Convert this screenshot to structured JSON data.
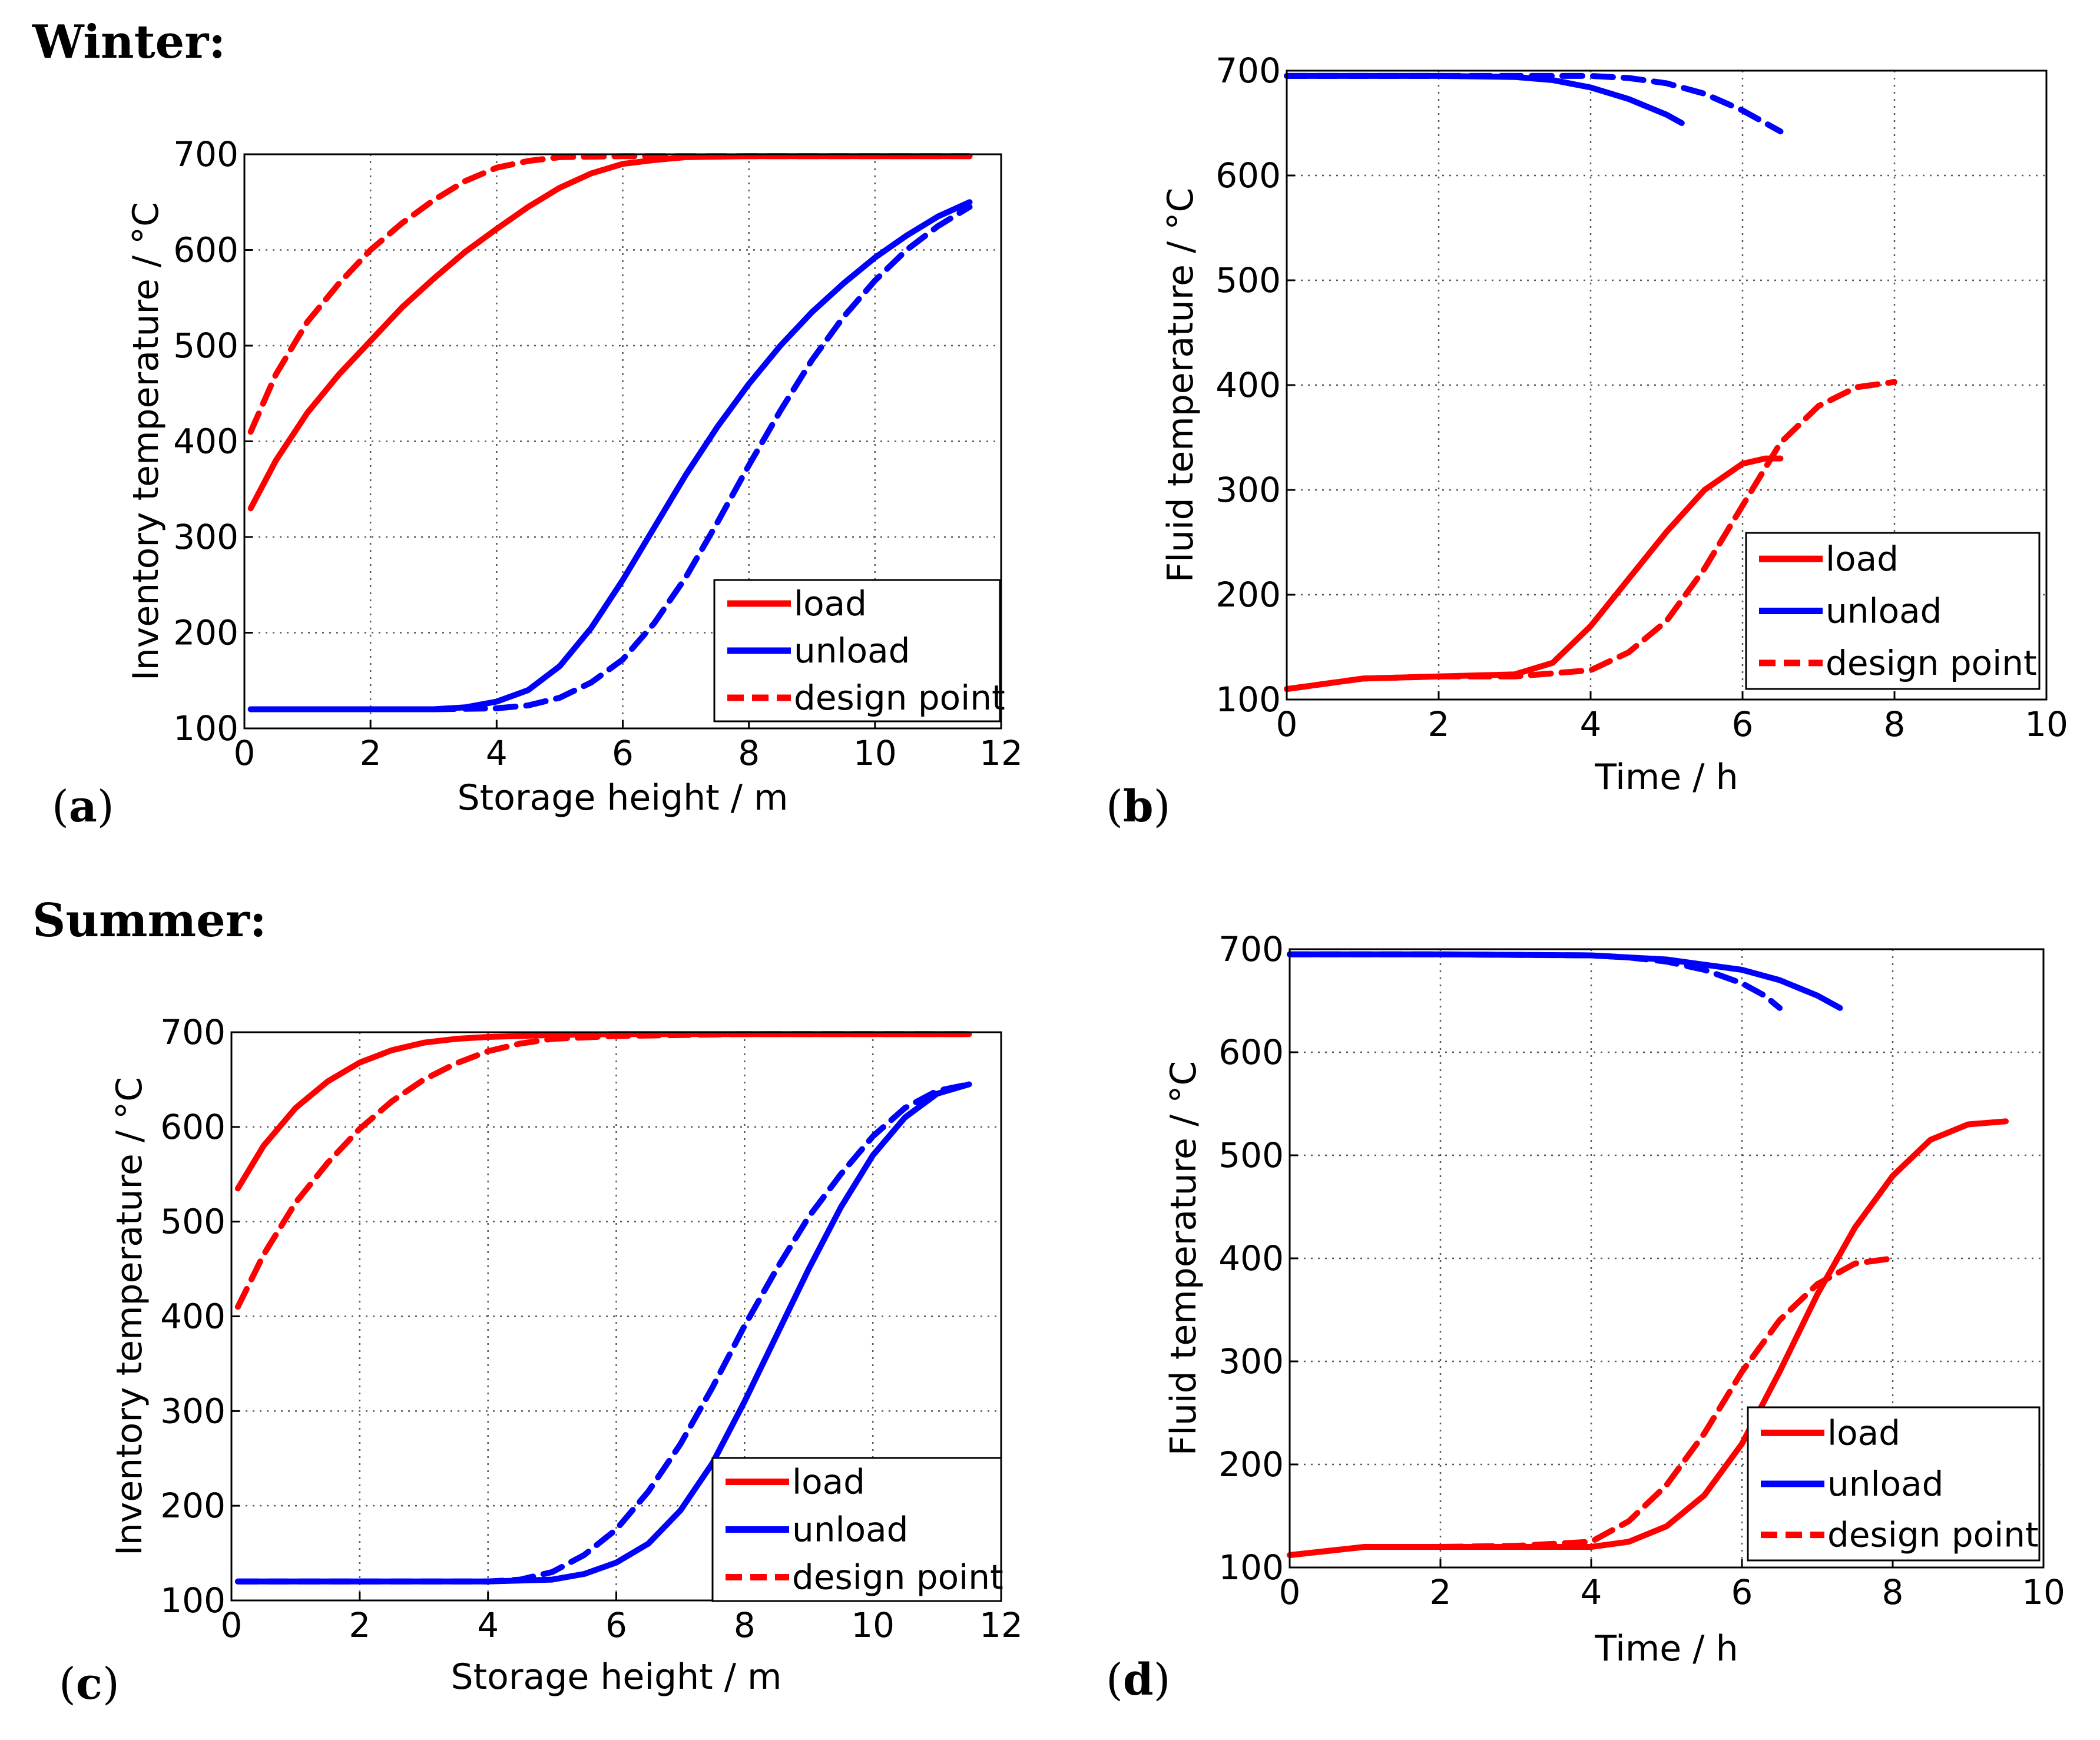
{
  "season_labels": {
    "winter": "Winter:",
    "summer": "Summer:"
  },
  "colors": {
    "load": "#ff0000",
    "unload": "#0000ff"
  },
  "chart_data": [
    {
      "id": "a",
      "panel_letter": "a",
      "type": "line",
      "xlabel": "Storage height / m",
      "ylabel": "Inventory temperature / °C",
      "xlim": [
        0,
        12
      ],
      "ylim": [
        100,
        700
      ],
      "xticks": [
        0,
        2,
        4,
        6,
        8,
        10,
        12
      ],
      "yticks": [
        100,
        200,
        300,
        400,
        500,
        600,
        700
      ],
      "grid": true,
      "legend_position": "bottom-right",
      "legend": [
        {
          "label": "load",
          "color": "#ff0000",
          "dash": false
        },
        {
          "label": "unload",
          "color": "#0000ff",
          "dash": false
        },
        {
          "label": "design point",
          "color": "#ff0000",
          "dash": true
        }
      ],
      "series": [
        {
          "name": "load",
          "color": "#ff0000",
          "dash": false,
          "x": [
            0.1,
            0.5,
            1,
            1.5,
            2,
            2.5,
            3,
            3.5,
            4,
            4.5,
            5,
            5.5,
            6,
            6.5,
            7,
            8,
            10,
            11.5
          ],
          "y": [
            330,
            380,
            430,
            470,
            505,
            540,
            570,
            598,
            622,
            645,
            665,
            680,
            690,
            694,
            697,
            698,
            698,
            698
          ]
        },
        {
          "name": "design point",
          "color": "#ff0000",
          "dash": true,
          "x": [
            0.1,
            0.5,
            1,
            1.5,
            2,
            2.5,
            3,
            3.5,
            4,
            4.5,
            5,
            6,
            7,
            9,
            11.5
          ],
          "y": [
            410,
            470,
            525,
            565,
            600,
            628,
            652,
            672,
            686,
            693,
            697,
            698,
            698,
            698,
            698
          ]
        },
        {
          "name": "unload",
          "color": "#0000ff",
          "dash": false,
          "x": [
            0.1,
            1,
            2,
            3,
            3.5,
            4,
            4.5,
            5,
            5.5,
            6,
            6.5,
            7,
            7.5,
            8,
            8.5,
            9,
            9.5,
            10,
            10.5,
            11,
            11.5
          ],
          "y": [
            120,
            120,
            120,
            120,
            122,
            128,
            140,
            165,
            205,
            255,
            310,
            365,
            415,
            460,
            500,
            535,
            565,
            592,
            615,
            635,
            650
          ]
        },
        {
          "name": "unload design point",
          "color": "#0000ff",
          "dash": true,
          "x": [
            0.1,
            2,
            3,
            4,
            4.5,
            5,
            5.5,
            6,
            6.5,
            7,
            7.5,
            8,
            8.5,
            9,
            9.5,
            10,
            10.5,
            11,
            11.5
          ],
          "y": [
            120,
            120,
            120,
            121,
            124,
            132,
            148,
            172,
            210,
            258,
            315,
            375,
            432,
            485,
            530,
            568,
            600,
            625,
            645
          ]
        }
      ]
    },
    {
      "id": "b",
      "panel_letter": "b",
      "type": "line",
      "xlabel": "Time / h",
      "ylabel": "Fluid temperature / °C",
      "xlim": [
        0,
        10
      ],
      "ylim": [
        100,
        700
      ],
      "xticks": [
        0,
        2,
        4,
        6,
        8,
        10
      ],
      "yticks": [
        100,
        200,
        300,
        400,
        500,
        600,
        700
      ],
      "grid": true,
      "legend_position": "bottom-right",
      "legend": [
        {
          "label": "load",
          "color": "#ff0000",
          "dash": false
        },
        {
          "label": "unload",
          "color": "#0000ff",
          "dash": false
        },
        {
          "label": "design point",
          "color": "#ff0000",
          "dash": true
        }
      ],
      "series": [
        {
          "name": "unload",
          "color": "#0000ff",
          "dash": false,
          "x": [
            0,
            1,
            2,
            3,
            3.5,
            4,
            4.5,
            5,
            5.2
          ],
          "y": [
            695,
            695,
            695,
            694,
            691,
            684,
            673,
            658,
            650
          ]
        },
        {
          "name": "unload design point",
          "color": "#0000ff",
          "dash": true,
          "x": [
            0,
            1,
            2,
            3,
            4,
            4.5,
            5,
            5.5,
            6,
            6.5
          ],
          "y": [
            695,
            695,
            695,
            695,
            695,
            693,
            688,
            678,
            662,
            642
          ]
        },
        {
          "name": "load",
          "color": "#ff0000",
          "dash": false,
          "x": [
            0,
            1,
            2,
            3,
            3.5,
            4,
            4.5,
            5,
            5.5,
            6,
            6.3,
            6.5
          ],
          "y": [
            110,
            120,
            122,
            124,
            135,
            170,
            215,
            260,
            300,
            325,
            330,
            330
          ]
        },
        {
          "name": "design point",
          "color": "#ff0000",
          "dash": true,
          "x": [
            0,
            1,
            2,
            3,
            4,
            4.5,
            5,
            5.5,
            6,
            6.5,
            7,
            7.5,
            8
          ],
          "y": [
            110,
            120,
            122,
            122,
            128,
            145,
            175,
            225,
            285,
            345,
            380,
            398,
            403
          ]
        }
      ]
    },
    {
      "id": "c",
      "panel_letter": "c",
      "type": "line",
      "xlabel": "Storage height / m",
      "ylabel": "Inventory temperature / °C",
      "xlim": [
        0,
        12
      ],
      "ylim": [
        100,
        700
      ],
      "xticks": [
        0,
        2,
        4,
        6,
        8,
        10,
        12
      ],
      "yticks": [
        100,
        200,
        300,
        400,
        500,
        600,
        700
      ],
      "grid": true,
      "legend_position": "bottom-right",
      "legend": [
        {
          "label": "load",
          "color": "#ff0000",
          "dash": false
        },
        {
          "label": "unload",
          "color": "#0000ff",
          "dash": false
        },
        {
          "label": "design point",
          "color": "#ff0000",
          "dash": true
        }
      ],
      "series": [
        {
          "name": "load",
          "color": "#ff0000",
          "dash": false,
          "x": [
            0.1,
            0.5,
            1,
            1.5,
            2,
            2.5,
            3,
            3.5,
            4,
            5,
            6,
            8,
            10,
            11.5
          ],
          "y": [
            535,
            580,
            620,
            648,
            668,
            681,
            689,
            693,
            695,
            697,
            698,
            698,
            698,
            698
          ]
        },
        {
          "name": "design point",
          "color": "#ff0000",
          "dash": true,
          "x": [
            0.1,
            0.5,
            1,
            1.5,
            2,
            2.5,
            3,
            3.5,
            4,
            4.5,
            5,
            6,
            8,
            11.5
          ],
          "y": [
            410,
            465,
            520,
            562,
            598,
            627,
            650,
            667,
            680,
            688,
            693,
            696,
            698,
            698
          ]
        },
        {
          "name": "unload",
          "color": "#0000ff",
          "dash": false,
          "x": [
            0.1,
            2,
            4,
            5,
            5.5,
            6,
            6.5,
            7,
            7.5,
            8,
            8.5,
            9,
            9.5,
            10,
            10.5,
            11,
            11.5
          ],
          "y": [
            120,
            120,
            120,
            122,
            128,
            140,
            160,
            195,
            245,
            310,
            380,
            450,
            515,
            570,
            610,
            635,
            645
          ]
        },
        {
          "name": "unload design point",
          "color": "#0000ff",
          "dash": true,
          "x": [
            0.1,
            2,
            4,
            4.5,
            5,
            5.5,
            6,
            6.5,
            7,
            7.5,
            8,
            8.5,
            9,
            9.5,
            10,
            10.5,
            11,
            11.5
          ],
          "y": [
            120,
            120,
            120,
            122,
            130,
            148,
            175,
            215,
            265,
            325,
            390,
            450,
            505,
            550,
            590,
            620,
            638,
            645
          ]
        }
      ]
    },
    {
      "id": "d",
      "panel_letter": "d",
      "type": "line",
      "xlabel": "Time / h",
      "ylabel": "Fluid temperature / °C",
      "xlim": [
        0,
        10
      ],
      "ylim": [
        100,
        700
      ],
      "xticks": [
        0,
        2,
        4,
        6,
        8,
        10
      ],
      "yticks": [
        100,
        200,
        300,
        400,
        500,
        600,
        700
      ],
      "grid": true,
      "legend_position": "bottom-right",
      "legend": [
        {
          "label": "load",
          "color": "#ff0000",
          "dash": false
        },
        {
          "label": "unload",
          "color": "#0000ff",
          "dash": false
        },
        {
          "label": "design point",
          "color": "#ff0000",
          "dash": true
        }
      ],
      "series": [
        {
          "name": "unload",
          "color": "#0000ff",
          "dash": false,
          "x": [
            0,
            2,
            4,
            5,
            5.5,
            6,
            6.5,
            7,
            7.3
          ],
          "y": [
            695,
            695,
            694,
            690,
            685,
            680,
            670,
            655,
            643
          ]
        },
        {
          "name": "unload design point",
          "color": "#0000ff",
          "dash": true,
          "x": [
            0,
            2,
            4,
            4.5,
            5,
            5.5,
            6,
            6.3,
            6.5
          ],
          "y": [
            695,
            695,
            694,
            692,
            688,
            680,
            667,
            655,
            643
          ]
        },
        {
          "name": "load",
          "color": "#ff0000",
          "dash": false,
          "x": [
            0,
            1,
            2,
            3,
            4,
            4.5,
            5,
            5.5,
            6,
            6.5,
            7,
            7.5,
            8,
            8.5,
            9,
            9.5
          ],
          "y": [
            112,
            120,
            120,
            120,
            120,
            125,
            140,
            170,
            220,
            290,
            365,
            430,
            480,
            515,
            530,
            533
          ]
        },
        {
          "name": "design point",
          "color": "#ff0000",
          "dash": true,
          "x": [
            0,
            1,
            2,
            3,
            4,
            4.5,
            5,
            5.5,
            6,
            6.5,
            7,
            7.5,
            8
          ],
          "y": [
            112,
            120,
            120,
            121,
            125,
            145,
            180,
            230,
            290,
            340,
            375,
            395,
            400
          ]
        }
      ]
    }
  ]
}
